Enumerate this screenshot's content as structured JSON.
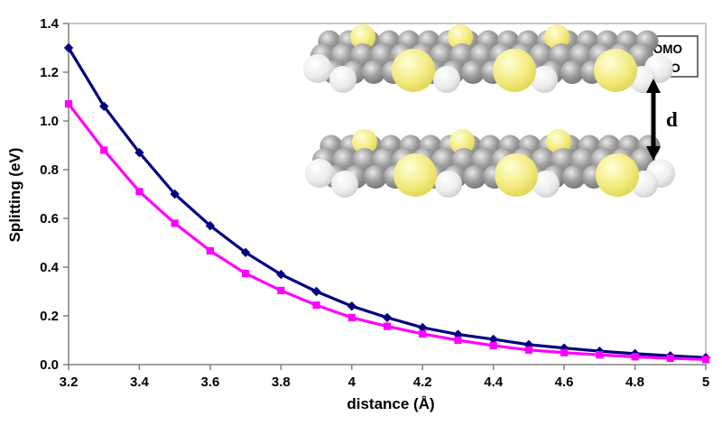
{
  "figure": {
    "kind": "scientific line chart with molecular dimer inset",
    "background": "#ffffff"
  },
  "chart_data": {
    "type": "line",
    "title": "",
    "xlabel": "distance (Å)",
    "ylabel": "Splitting (eV)",
    "xlim": [
      3.2,
      5.0
    ],
    "ylim": [
      0.0,
      1.4
    ],
    "grid": false,
    "legend_position": "top-right-inside",
    "x": [
      3.2,
      3.3,
      3.4,
      3.5,
      3.6,
      3.7,
      3.8,
      3.9,
      4.0,
      4.1,
      4.2,
      4.3,
      4.4,
      4.5,
      4.6,
      4.7,
      4.8,
      4.9,
      5.0
    ],
    "series": [
      {
        "name": "HOMO",
        "color": "#000080",
        "marker": "diamond",
        "values": [
          1.3,
          1.06,
          0.87,
          0.7,
          0.57,
          0.46,
          0.37,
          0.3,
          0.24,
          0.193,
          0.152,
          0.124,
          0.104,
          0.082,
          0.068,
          0.055,
          0.045,
          0.036,
          0.029
        ]
      },
      {
        "name": "LUMO",
        "color": "#FF00FF",
        "marker": "square",
        "values": [
          1.07,
          0.88,
          0.71,
          0.58,
          0.467,
          0.374,
          0.304,
          0.244,
          0.193,
          0.157,
          0.126,
          0.1,
          0.078,
          0.06,
          0.049,
          0.04,
          0.032,
          0.026,
          0.021
        ]
      }
    ],
    "x_ticks": [
      {
        "v": 3.2,
        "label": "3.2"
      },
      {
        "v": 3.4,
        "label": "3.4"
      },
      {
        "v": 3.6,
        "label": "3.6"
      },
      {
        "v": 3.8,
        "label": "3.8"
      },
      {
        "v": 4.0,
        "label": "4"
      },
      {
        "v": 4.2,
        "label": "4.2"
      },
      {
        "v": 4.4,
        "label": "4.4"
      },
      {
        "v": 4.6,
        "label": "4.6"
      },
      {
        "v": 4.8,
        "label": "4.8"
      },
      {
        "v": 5.0,
        "label": "5"
      }
    ],
    "y_ticks": [
      {
        "v": 0.0,
        "label": "0.0"
      },
      {
        "v": 0.2,
        "label": "0.2"
      },
      {
        "v": 0.4,
        "label": "0.4"
      },
      {
        "v": 0.6,
        "label": "0.6"
      },
      {
        "v": 0.8,
        "label": "0.8"
      },
      {
        "v": 1.0,
        "label": "1.0"
      },
      {
        "v": 1.2,
        "label": "1.2"
      },
      {
        "v": 1.4,
        "label": "1.4"
      }
    ]
  },
  "inset": {
    "distance_label": "d",
    "description": "two cofacially stacked thienoacene molecules (space-filling model) separated by distance d",
    "atom_colors": {
      "carbon": "#8a8a8a",
      "hydrogen": "#e8e8e8",
      "sulfur": "#f0e96a"
    }
  },
  "colors": {
    "axis_line": "#808080",
    "plot_border": "#aaaaaa",
    "legend_border": "#404040",
    "series1": "#000080",
    "series2": "#FF00FF"
  }
}
